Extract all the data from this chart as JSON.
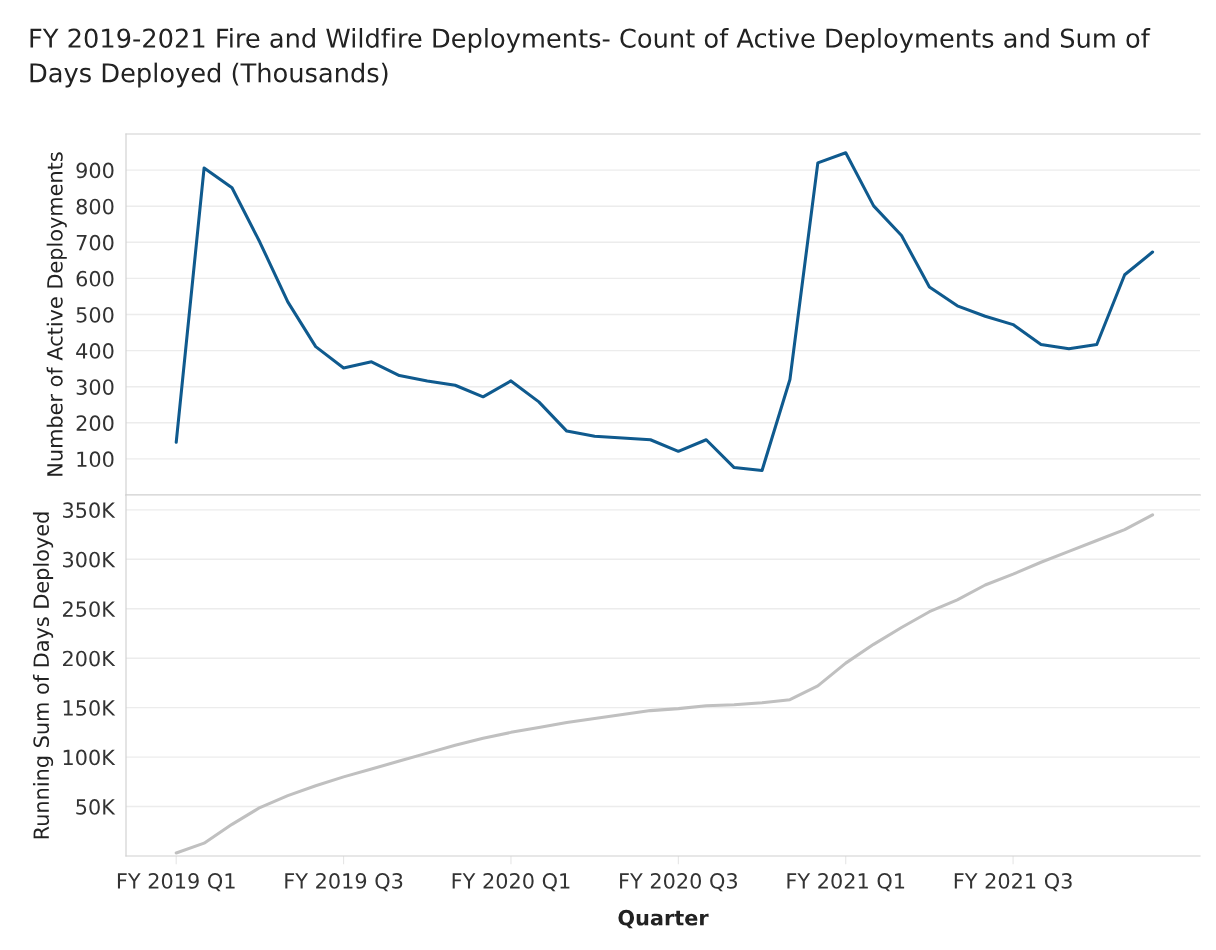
{
  "chart_data": [
    {
      "type": "line",
      "title": "FY 2019-2021 Fire and Wildfire Deployments- Count of Active Deployments and Sum of Days Deployed (Thousands)",
      "ylabel": "Number of Active Deployments",
      "categories": [
        null,
        null,
        null,
        null,
        null,
        null,
        null,
        null,
        null,
        null,
        null,
        null,
        null,
        null,
        null,
        null,
        null,
        null,
        null,
        null,
        null,
        null,
        null,
        null,
        null,
        null,
        null,
        null,
        null,
        null,
        null,
        null,
        null,
        null,
        null,
        null
      ],
      "series": [
        {
          "color": "#0f5a8e",
          "values": [
            146,
            906,
            851,
            700,
            535,
            411,
            352,
            369,
            331,
            316,
            304,
            272,
            316,
            258,
            177,
            163,
            158,
            153,
            121,
            153,
            76,
            68,
            320,
            920,
            948,
            801,
            719,
            576,
            524,
            495,
            472,
            417,
            405,
            417,
            610,
            673
          ]
        }
      ],
      "ylim": [
        0,
        1000
      ],
      "yticks": [
        100,
        200,
        300,
        400,
        500,
        600,
        700,
        800,
        900
      ],
      "grid": "y"
    },
    {
      "type": "line",
      "xlabel": "Quarter",
      "ylabel": "Running Sum of Days Deployed",
      "categories": [
        "FY 2019 Q1",
        null,
        null,
        null,
        null,
        null,
        "FY 2019 Q3",
        null,
        null,
        null,
        null,
        null,
        "FY 2020 Q1",
        null,
        null,
        null,
        null,
        null,
        "FY 2020 Q3",
        null,
        null,
        null,
        null,
        null,
        "FY 2021 Q1",
        null,
        null,
        null,
        null,
        null,
        "FY 2021 Q3",
        null,
        null,
        null,
        null,
        null
      ],
      "series": [
        {
          "color": "#c0c0c0",
          "values": [
            3000,
            13000,
            32000,
            49000,
            61000,
            71000,
            80000,
            88000,
            96000,
            104000,
            112000,
            119000,
            125000,
            130000,
            135000,
            139000,
            143000,
            147000,
            149000,
            152000,
            153000,
            155000,
            158000,
            172000,
            195000,
            214000,
            231000,
            247000,
            259000,
            274000,
            285000,
            297000,
            308000,
            319000,
            330000,
            345000
          ]
        }
      ],
      "ylim": [
        0,
        365000
      ],
      "yticks": [
        {
          "value": 50000,
          "label": "50K"
        },
        {
          "value": 100000,
          "label": "100K"
        },
        {
          "value": 150000,
          "label": "150K"
        },
        {
          "value": 200000,
          "label": "200K"
        },
        {
          "value": 250000,
          "label": "250K"
        },
        {
          "value": 300000,
          "label": "300K"
        },
        {
          "value": 350000,
          "label": "350K"
        }
      ],
      "grid": "y"
    }
  ]
}
